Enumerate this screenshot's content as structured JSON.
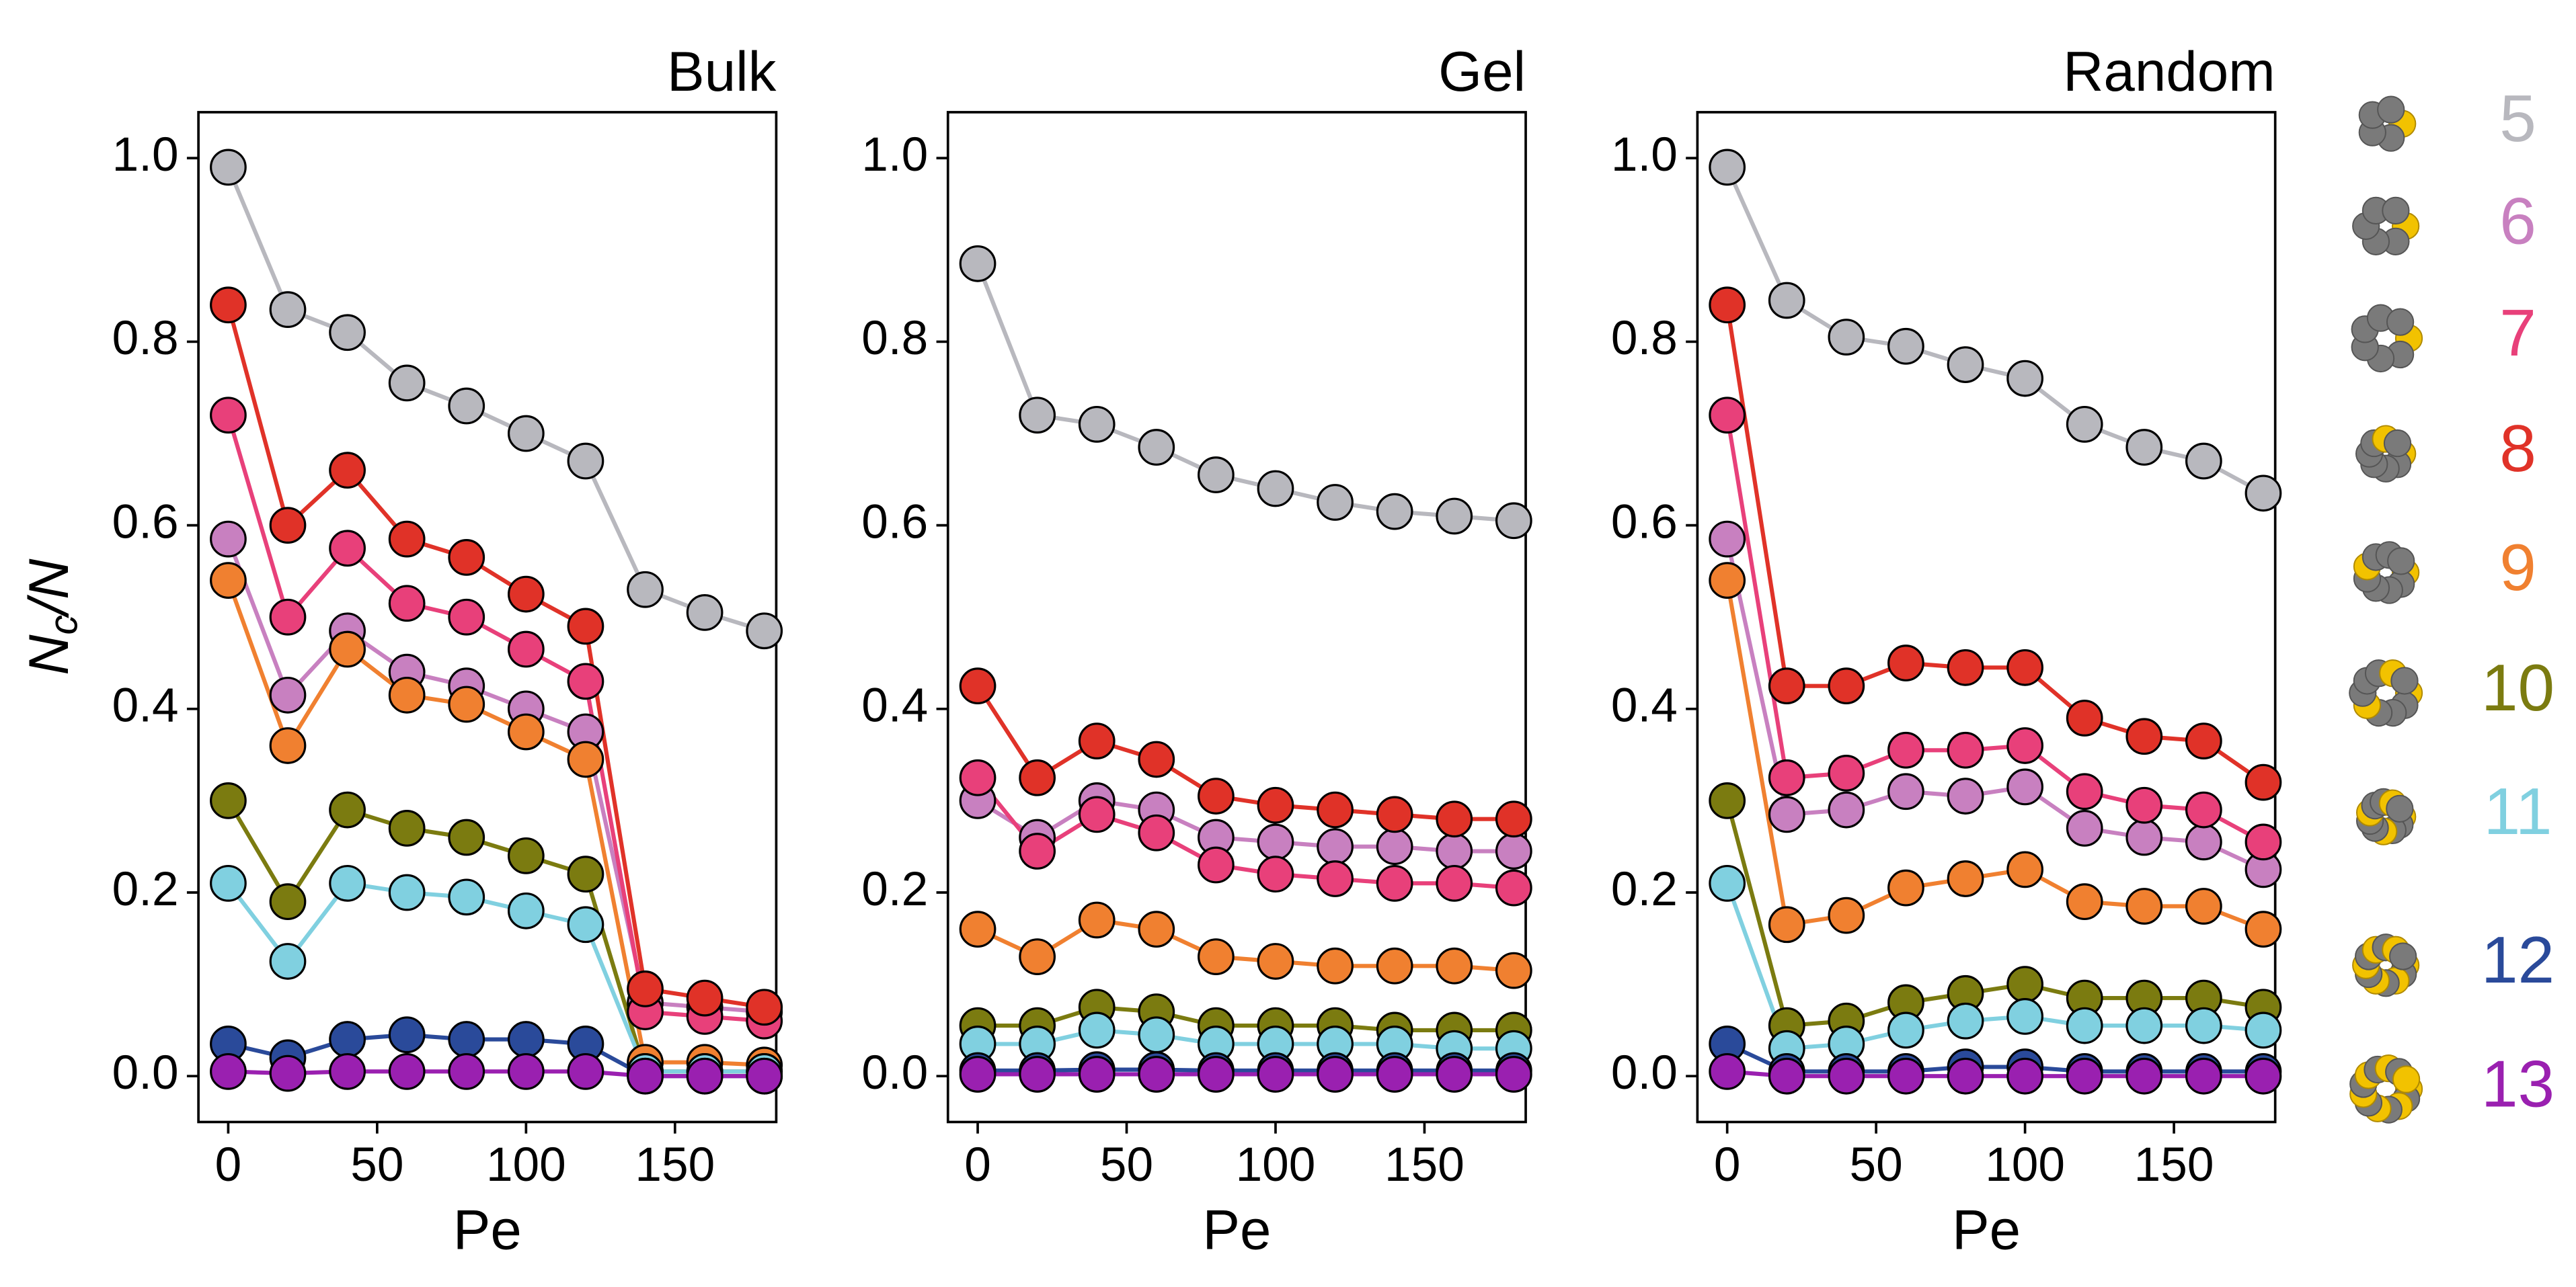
{
  "chart_data": [
    {
      "type": "line",
      "title": "Bulk",
      "xlabel": "Pe",
      "ylabel_parts": [
        "N",
        "c",
        "/N"
      ],
      "x": [
        0,
        20,
        40,
        60,
        80,
        100,
        120,
        140,
        160,
        180
      ],
      "xlim": [
        -10,
        184
      ],
      "xticks": [
        0,
        50,
        100,
        150
      ],
      "ylim": [
        -0.05,
        1.05
      ],
      "yticks": [
        {
          "value": 0,
          "label": "0.0"
        },
        0.2,
        0.4,
        0.6,
        0.8,
        {
          "value": 1,
          "label": "1.0"
        }
      ],
      "series": [
        {
          "name": "5",
          "color": "#b8b8be",
          "values": [
            0.99,
            0.835,
            0.81,
            0.755,
            0.73,
            0.7,
            0.67,
            0.53,
            0.505,
            0.485
          ]
        },
        {
          "name": "6",
          "color": "#c880c0",
          "values": [
            0.585,
            0.415,
            0.485,
            0.44,
            0.425,
            0.4,
            0.375,
            0.08,
            0.075,
            0.07
          ]
        },
        {
          "name": "7",
          "color": "#e8407a",
          "values": [
            0.72,
            0.5,
            0.575,
            0.515,
            0.5,
            0.465,
            0.43,
            0.07,
            0.065,
            0.06
          ]
        },
        {
          "name": "8",
          "color": "#e03228",
          "values": [
            0.84,
            0.6,
            0.66,
            0.585,
            0.565,
            0.525,
            0.49,
            0.095,
            0.085,
            0.075
          ]
        },
        {
          "name": "9",
          "color": "#f08030",
          "values": [
            0.54,
            0.36,
            0.465,
            0.415,
            0.405,
            0.375,
            0.345,
            0.015,
            0.015,
            0.012
          ]
        },
        {
          "name": "10",
          "color": "#7b7b10",
          "values": [
            0.3,
            0.19,
            0.29,
            0.27,
            0.26,
            0.24,
            0.22,
            0.005,
            0.005,
            0.005
          ]
        },
        {
          "name": "11",
          "color": "#80d0e0",
          "values": [
            0.21,
            0.125,
            0.21,
            0.2,
            0.195,
            0.18,
            0.165,
            0.005,
            0.005,
            0.005
          ]
        },
        {
          "name": "12",
          "color": "#2a4a9a",
          "values": [
            0.035,
            0.02,
            0.04,
            0.045,
            0.04,
            0.04,
            0.035,
            0,
            0,
            0
          ]
        },
        {
          "name": "13",
          "color": "#9a20b0",
          "values": [
            0.005,
            0.003,
            0.005,
            0.005,
            0.005,
            0.005,
            0.005,
            0,
            0,
            0
          ]
        }
      ]
    },
    {
      "type": "line",
      "title": "Gel",
      "xlabel": "Pe",
      "x": [
        0,
        20,
        40,
        60,
        80,
        100,
        120,
        140,
        160,
        180
      ],
      "xlim": [
        -10,
        184
      ],
      "xticks": [
        0,
        50,
        100,
        150
      ],
      "ylim": [
        -0.05,
        1.05
      ],
      "yticks": [
        {
          "value": 0,
          "label": "0.0"
        },
        0.2,
        0.4,
        0.6,
        0.8,
        {
          "value": 1,
          "label": "1.0"
        }
      ],
      "series": [
        {
          "color": "#b8b8be",
          "values": [
            0.885,
            0.72,
            0.71,
            0.685,
            0.655,
            0.64,
            0.625,
            0.615,
            0.61,
            0.605
          ]
        },
        {
          "color": "#c880c0",
          "values": [
            0.3,
            0.26,
            0.3,
            0.29,
            0.26,
            0.255,
            0.25,
            0.25,
            0.245,
            0.245
          ]
        },
        {
          "color": "#e8407a",
          "values": [
            0.325,
            0.245,
            0.285,
            0.265,
            0.23,
            0.22,
            0.215,
            0.21,
            0.21,
            0.205
          ]
        },
        {
          "color": "#e03228",
          "values": [
            0.425,
            0.325,
            0.365,
            0.345,
            0.305,
            0.295,
            0.29,
            0.285,
            0.28,
            0.28
          ]
        },
        {
          "color": "#f08030",
          "values": [
            0.16,
            0.13,
            0.17,
            0.16,
            0.13,
            0.125,
            0.12,
            0.12,
            0.12,
            0.115
          ]
        },
        {
          "color": "#7b7b10",
          "values": [
            0.055,
            0.055,
            0.075,
            0.07,
            0.055,
            0.055,
            0.055,
            0.05,
            0.05,
            0.05
          ]
        },
        {
          "color": "#80d0e0",
          "values": [
            0.035,
            0.035,
            0.05,
            0.045,
            0.035,
            0.035,
            0.035,
            0.035,
            0.03,
            0.03
          ]
        },
        {
          "color": "#2a4a9a",
          "values": [
            0.006,
            0.006,
            0.007,
            0.007,
            0.006,
            0.006,
            0.006,
            0.006,
            0.006,
            0.006
          ]
        },
        {
          "color": "#9a20b0",
          "values": [
            0.002,
            0.002,
            0.002,
            0.002,
            0.002,
            0.002,
            0.002,
            0.002,
            0.002,
            0.002
          ]
        }
      ]
    },
    {
      "type": "line",
      "title": "Random",
      "xlabel": "Pe",
      "x": [
        0,
        20,
        40,
        60,
        80,
        100,
        120,
        140,
        160,
        180
      ],
      "xlim": [
        -10,
        184
      ],
      "xticks": [
        0,
        50,
        100,
        150
      ],
      "ylim": [
        -0.05,
        1.05
      ],
      "yticks": [
        {
          "value": 0,
          "label": "0.0"
        },
        0.2,
        0.4,
        0.6,
        0.8,
        {
          "value": 1,
          "label": "1.0"
        }
      ],
      "series": [
        {
          "color": "#b8b8be",
          "values": [
            0.99,
            0.845,
            0.805,
            0.795,
            0.775,
            0.76,
            0.71,
            0.685,
            0.67,
            0.635
          ]
        },
        {
          "color": "#c880c0",
          "values": [
            0.585,
            0.285,
            0.29,
            0.31,
            0.305,
            0.315,
            0.27,
            0.26,
            0.255,
            0.225
          ]
        },
        {
          "color": "#e8407a",
          "values": [
            0.72,
            0.325,
            0.33,
            0.355,
            0.355,
            0.36,
            0.31,
            0.295,
            0.29,
            0.255
          ]
        },
        {
          "color": "#e03228",
          "values": [
            0.84,
            0.425,
            0.425,
            0.45,
            0.445,
            0.445,
            0.39,
            0.37,
            0.365,
            0.32
          ]
        },
        {
          "color": "#f08030",
          "values": [
            0.54,
            0.165,
            0.175,
            0.205,
            0.215,
            0.225,
            0.19,
            0.185,
            0.185,
            0.16
          ]
        },
        {
          "color": "#7b7b10",
          "values": [
            0.3,
            0.055,
            0.06,
            0.08,
            0.09,
            0.1,
            0.085,
            0.085,
            0.085,
            0.075
          ]
        },
        {
          "color": "#80d0e0",
          "values": [
            0.21,
            0.03,
            0.035,
            0.05,
            0.06,
            0.065,
            0.055,
            0.055,
            0.055,
            0.05
          ]
        },
        {
          "color": "#2a4a9a",
          "values": [
            0.035,
            0.005,
            0.005,
            0.005,
            0.01,
            0.01,
            0.005,
            0.005,
            0.005,
            0.005
          ]
        },
        {
          "color": "#9a20b0",
          "values": [
            0.005,
            0,
            0,
            0,
            0,
            0,
            0,
            0,
            0,
            0
          ]
        }
      ]
    }
  ]
}
